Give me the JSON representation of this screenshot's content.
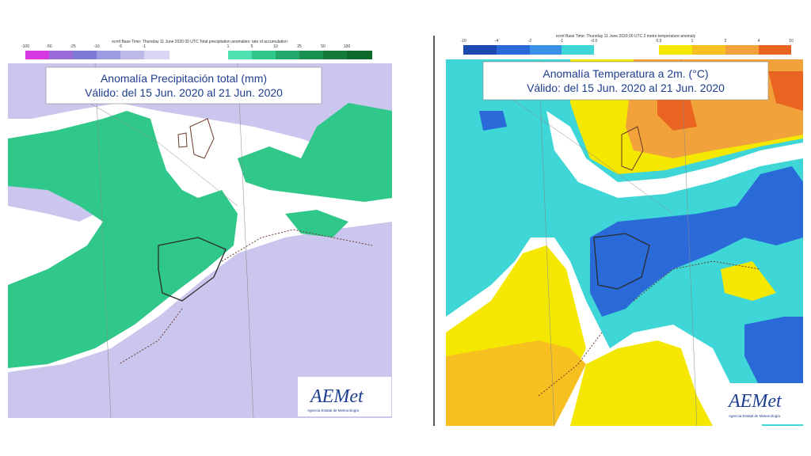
{
  "panels": [
    {
      "header": "ecmf Base Time: Thursday 11 June 2020 00 UTC Total precipitation anomalies: rate of accumulation",
      "legend_labels": [
        "-100",
        "-50",
        "-25",
        "-10",
        "-5",
        "-1",
        "1",
        "5",
        "10",
        "25",
        "50",
        "100"
      ],
      "title": "Anomalía Precipitación total (mm)",
      "subtitle": "Válido: del 15 Jun. 2020 al 21 Jun. 2020",
      "logo": "AEMet",
      "logo_caption": "Agencia Estatal de Meteorología"
    },
    {
      "header": "ecmf Base Time: Thursday 11 June 2020 00 UTC 2 metre temperature anomaly",
      "legend_labels": [
        "-10",
        "-4",
        "-2",
        "-1",
        "-0.5",
        "0.5",
        "1",
        "2",
        "4",
        "10"
      ],
      "title": "Anomalía Temperatura a 2m. (°C)",
      "subtitle": "Válido: del 15 Jun. 2020 al 21 Jun. 2020",
      "logo": "AEMet",
      "logo_caption": "Agencia Estatal de Meteorología"
    }
  ]
}
